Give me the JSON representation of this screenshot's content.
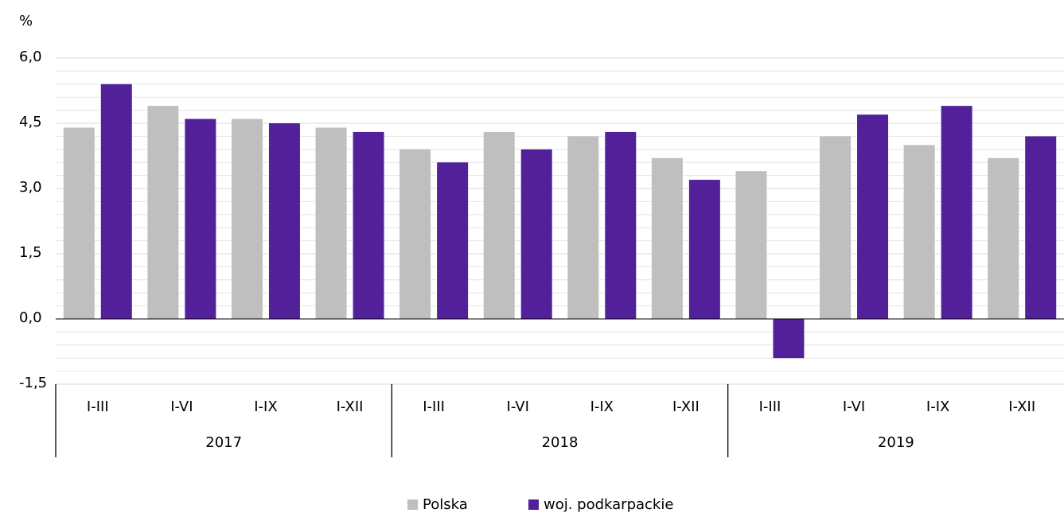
{
  "chart_data": {
    "type": "bar",
    "y_unit": "%",
    "categories": [
      "I-III",
      "I-VI",
      "I-IX",
      "I-XII",
      "I-III",
      "I-VI",
      "I-IX",
      "I-XII",
      "I-III",
      "I-VI",
      "I-IX",
      "I-XII"
    ],
    "groups": [
      "2017",
      "2018",
      "2019"
    ],
    "series": [
      {
        "name": "Polska",
        "color": "#bfbfbf",
        "values": [
          4.4,
          4.9,
          4.6,
          4.4,
          3.9,
          4.3,
          4.2,
          3.7,
          3.4,
          4.2,
          4.0,
          3.7
        ]
      },
      {
        "name": "woj. podkarpackie",
        "color": "#52219a",
        "values": [
          5.4,
          4.6,
          4.5,
          4.3,
          3.6,
          3.9,
          4.3,
          3.2,
          -0.9,
          4.7,
          4.9,
          4.2
        ]
      }
    ],
    "ylim": [
      -1.5,
      6.0
    ],
    "yticks": [
      {
        "value": -1.5,
        "label": "-1,5"
      },
      {
        "value": 0,
        "label": "0,0"
      },
      {
        "value": 1.5,
        "label": "1,5"
      },
      {
        "value": 3.0,
        "label": "3,0"
      },
      {
        "value": 4.5,
        "label": "4,5"
      },
      {
        "value": 6.0,
        "label": "6,0"
      }
    ],
    "grid": true
  }
}
